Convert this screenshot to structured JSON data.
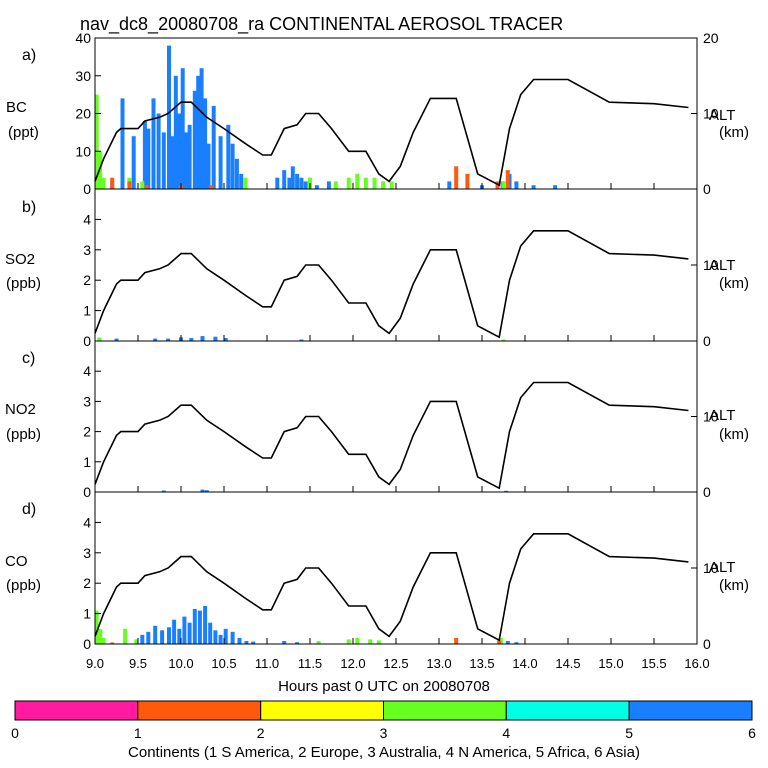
{
  "title": "nav_dc8_20080708_ra CONTINENTAL AEROSOL TRACER",
  "xlabel": "Hours past 0 UTC on 20080708",
  "x_ticks": [
    "9.0",
    "9.5",
    "10.0",
    "10.5",
    "11.0",
    "11.5",
    "12.0",
    "12.5",
    "13.0",
    "13.5",
    "14.0",
    "14.5",
    "15.0",
    "15.5",
    "16.0"
  ],
  "alt_axis": {
    "label": "ALT",
    "unit": "(km)",
    "range": [
      0,
      20
    ],
    "ticks_top": [
      "0",
      "10",
      "20"
    ],
    "ticks_other": [
      "0",
      "10"
    ]
  },
  "colorbar": {
    "label": "Continents (1 S America, 2 Europe, 3 Australia, 4 N America, 5 Africa, 6 Asia)",
    "ticks": [
      "0",
      "1",
      "2",
      "3",
      "4",
      "5",
      "6"
    ],
    "colors": [
      "#ff1aa0",
      "#ff5a0a",
      "#ffff00",
      "#66ff1f",
      "#00ffe5",
      "#1a7fff"
    ]
  },
  "chart_data": {
    "type": "bar",
    "x_range": [
      9.0,
      16.0
    ],
    "panels": [
      {
        "letter": "a)",
        "species": "BC",
        "unit": "(ppt)",
        "ylim": [
          0,
          40
        ],
        "yticks": [
          "0",
          "10",
          "20",
          "30",
          "40"
        ]
      },
      {
        "letter": "b)",
        "species": "SO2",
        "unit": "(ppb)",
        "ylim": [
          0,
          5
        ],
        "yticks": [
          "0",
          "1",
          "2",
          "3",
          "4"
        ]
      },
      {
        "letter": "c)",
        "species": "NO2",
        "unit": "(ppb)",
        "ylim": [
          0,
          5
        ],
        "yticks": [
          "0",
          "1",
          "2",
          "3",
          "4"
        ]
      },
      {
        "letter": "d)",
        "species": "CO",
        "unit": "(ppb)",
        "ylim": [
          0,
          5
        ],
        "yticks": [
          "0",
          "1",
          "2",
          "3",
          "4"
        ]
      }
    ],
    "altitude_km": {
      "t": [
        9.0,
        9.1,
        9.25,
        9.3,
        9.5,
        9.58,
        9.75,
        9.85,
        10.0,
        10.12,
        10.3,
        10.5,
        10.75,
        10.95,
        11.05,
        11.2,
        11.35,
        11.45,
        11.6,
        11.75,
        11.95,
        12.15,
        12.3,
        12.42,
        12.55,
        12.7,
        12.9,
        13.2,
        13.45,
        13.7,
        13.82,
        13.95,
        14.1,
        14.5,
        14.98,
        15.5,
        15.9
      ],
      "alt": [
        1,
        4,
        7.5,
        8,
        8,
        9,
        9.5,
        10,
        11.5,
        11.5,
        9.5,
        8,
        6,
        4.5,
        4.5,
        8,
        8.5,
        10,
        10,
        8,
        5,
        5,
        2,
        1,
        3,
        7.5,
        12,
        12,
        2,
        0.5,
        8,
        12.5,
        14.5,
        14.5,
        11.5,
        11.3,
        10.8
      ]
    },
    "series": [
      {
        "name": "Asia (6) BC",
        "panel": 0,
        "color": "#1a7fff",
        "t": [
          9.02,
          9.2,
          9.32,
          9.45,
          9.58,
          9.62,
          9.68,
          9.74,
          9.8,
          9.86,
          9.9,
          9.94,
          9.98,
          10.02,
          10.06,
          10.1,
          10.16,
          10.2,
          10.24,
          10.28,
          10.32,
          10.38,
          10.46,
          10.55,
          10.6,
          10.65,
          10.7,
          11.12,
          11.2,
          11.26,
          11.3,
          11.35,
          11.4,
          11.45,
          11.58,
          11.72,
          13.12,
          13.5,
          13.74,
          13.82,
          13.9,
          14.1,
          14.35
        ],
        "v": [
          3,
          2,
          24,
          14,
          18,
          16,
          24,
          20,
          15,
          38,
          14,
          30,
          20,
          32,
          15,
          17,
          26,
          30,
          32,
          24,
          12,
          22,
          14,
          17,
          12,
          8,
          4,
          3,
          5,
          3,
          6,
          4,
          3,
          2,
          1,
          2,
          2,
          1,
          2,
          4,
          2,
          1,
          1
        ]
      },
      {
        "name": "N America (4) BC",
        "panel": 0,
        "color": "#66ff1f",
        "t": [
          9.02,
          9.06,
          9.1,
          9.4,
          9.55,
          10.75,
          11.5,
          11.8,
          11.95,
          12.05,
          12.15,
          12.25,
          12.35,
          12.45,
          13.75
        ],
        "v": [
          25,
          10,
          3,
          3,
          2,
          3,
          3,
          2,
          3,
          4,
          3,
          3,
          2,
          2,
          2
        ]
      },
      {
        "name": "Europe (2) BC",
        "panel": 0,
        "color": "#ff5a0a",
        "t": [
          9.2,
          9.4,
          9.6,
          10.0,
          10.35,
          13.2,
          13.33,
          13.68,
          13.8
        ],
        "v": [
          3,
          2,
          1,
          1,
          1,
          6,
          4,
          2,
          5
        ]
      },
      {
        "name": "Asia (6) SO2",
        "panel": 1,
        "color": "#1a7fff",
        "t": [
          9.25,
          9.7,
          9.85,
          10.0,
          10.12,
          10.25,
          10.4,
          10.52,
          11.4
        ],
        "v": [
          0.08,
          0.08,
          0.08,
          0.12,
          0.1,
          0.16,
          0.14,
          0.1,
          0.05
        ]
      },
      {
        "name": "N America (4) SO2",
        "panel": 1,
        "color": "#66ff1f",
        "t": [
          9.05,
          13.75
        ],
        "v": [
          0.12,
          0.05
        ]
      },
      {
        "name": "Asia (6) NO2",
        "panel": 2,
        "color": "#1a7fff",
        "t": [
          9.8,
          10.25,
          10.3,
          13.78
        ],
        "v": [
          0.05,
          0.08,
          0.06,
          0.04
        ]
      },
      {
        "name": "Asia (6) CO",
        "panel": 3,
        "color": "#1a7fff",
        "t": [
          9.55,
          9.62,
          9.7,
          9.78,
          9.86,
          9.92,
          9.98,
          10.04,
          10.1,
          10.16,
          10.22,
          10.28,
          10.34,
          10.4,
          10.46,
          10.52,
          10.6,
          10.68,
          10.76,
          10.84,
          11.2,
          11.35,
          11.6,
          13.8,
          13.9
        ],
        "v": [
          0.3,
          0.4,
          0.6,
          0.45,
          0.55,
          0.8,
          0.5,
          0.9,
          0.7,
          1.15,
          1.1,
          1.25,
          0.7,
          0.45,
          0.3,
          0.5,
          0.4,
          0.2,
          0.1,
          0.08,
          0.1,
          0.06,
          0.05,
          0.1,
          0.06
        ]
      },
      {
        "name": "N America (4) CO",
        "panel": 3,
        "color": "#66ff1f",
        "t": [
          9.02,
          9.06,
          9.1,
          9.35,
          9.48,
          11.6,
          11.95,
          12.05,
          12.2,
          12.3,
          13.72
        ],
        "v": [
          1.1,
          0.5,
          0.2,
          0.5,
          0.15,
          0.1,
          0.15,
          0.2,
          0.15,
          0.12,
          0.2
        ]
      },
      {
        "name": "Europe (2) CO",
        "panel": 3,
        "color": "#ff5a0a",
        "t": [
          9.2,
          13.2,
          13.7
        ],
        "v": [
          0.05,
          0.2,
          0.12
        ]
      }
    ]
  }
}
